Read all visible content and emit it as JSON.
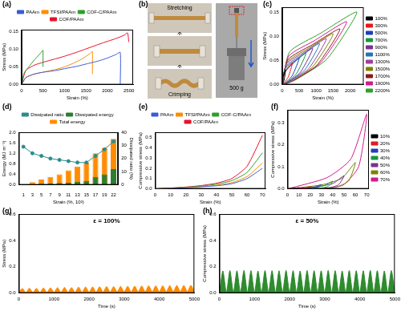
{
  "chart_data": [
    {
      "panel_label": "(a)",
      "type": "line",
      "x_label": "Strain (%)",
      "y_label": "Stress (MPa)",
      "xlim": [
        0,
        2600
      ],
      "xticks": [
        0,
        500,
        1000,
        1500,
        2000,
        2500
      ],
      "ylim": [
        0,
        0.155
      ],
      "yticks": [
        {
          "value": 0,
          "label": "0.00"
        },
        {
          "value": 0.05,
          "label": "0.05"
        },
        {
          "value": 0.1,
          "label": "0.10"
        },
        {
          "value": 0.15,
          "label": "0.15"
        }
      ],
      "grid": false,
      "legend": "top",
      "series": [
        {
          "name": "PAAm",
          "color": "#3b5bdb",
          "x": [
            0,
            100,
            300,
            500,
            800,
            1000,
            1300,
            1500,
            1800,
            2000,
            2200,
            2300,
            2300
          ],
          "values": [
            0,
            0.02,
            0.03,
            0.035,
            0.04,
            0.045,
            0.052,
            0.058,
            0.067,
            0.075,
            0.085,
            0.091,
            0
          ]
        },
        {
          "name": "TFSI/PAAm",
          "color": "#ff8c00",
          "x": [
            0,
            100,
            300,
            500,
            800,
            1000,
            1200,
            1400,
            1600,
            1650,
            1650
          ],
          "values": [
            0,
            0.02,
            0.03,
            0.035,
            0.043,
            0.05,
            0.06,
            0.072,
            0.088,
            0.094,
            0.03
          ]
        },
        {
          "name": "COF-C/PAAm",
          "color": "#2ca02c",
          "x": [
            0,
            50,
            100,
            200,
            300,
            400,
            480,
            500,
            500
          ],
          "values": [
            0,
            0.03,
            0.04,
            0.055,
            0.07,
            0.083,
            0.094,
            0.097,
            0.05
          ]
        },
        {
          "name": "COF/PAAm",
          "color": "#e8112d",
          "x": [
            0,
            100,
            300,
            500,
            800,
            1000,
            1300,
            1600,
            1900,
            2200,
            2400,
            2470,
            2500
          ],
          "values": [
            0,
            0.04,
            0.055,
            0.063,
            0.073,
            0.08,
            0.092,
            0.105,
            0.118,
            0.13,
            0.14,
            0.146,
            0.12
          ]
        }
      ]
    },
    {
      "panel_label": "(c)",
      "type": "line",
      "x_label": "Strain (%)",
      "y_label": "Stress (MPa)",
      "xlim": [
        0,
        2400
      ],
      "xticks": [
        0,
        500,
        1000,
        1500,
        2000
      ],
      "ylim": [
        0,
        0.16
      ],
      "yticks": [
        {
          "value": 0,
          "label": "0.00"
        },
        {
          "value": 0.05,
          "label": "0.05"
        },
        {
          "value": 0.1,
          "label": "0.10"
        },
        {
          "value": 0.15,
          "label": "0.15"
        }
      ],
      "grid": false,
      "legend": "right",
      "series": [
        {
          "name": "100%",
          "color": "#000000",
          "x": [
            0,
            10,
            50,
            100,
            60,
            20,
            3
          ],
          "values": [
            0,
            0.014,
            0.021,
            0.03,
            0.011,
            0.002,
            0
          ]
        },
        {
          "name": "300%",
          "color": "#e41a1c",
          "x": [
            0,
            30,
            150,
            300,
            180,
            60,
            9
          ],
          "values": [
            0,
            0.02,
            0.032,
            0.045,
            0.016,
            0.004,
            0
          ]
        },
        {
          "name": "500%",
          "color": "#1f3fbf",
          "x": [
            0,
            50,
            250,
            500,
            300,
            100,
            15
          ],
          "values": [
            0,
            0.025,
            0.039,
            0.055,
            0.019,
            0.004,
            0
          ]
        },
        {
          "name": "700%",
          "color": "#1a9641",
          "x": [
            0,
            70,
            350,
            700,
            420,
            140,
            21
          ],
          "values": [
            0,
            0.029,
            0.046,
            0.065,
            0.023,
            0.005,
            0
          ]
        },
        {
          "name": "900%",
          "color": "#7b3294",
          "x": [
            0,
            90,
            450,
            900,
            540,
            180,
            27
          ],
          "values": [
            0,
            0.034,
            0.053,
            0.075,
            0.026,
            0.006,
            0
          ]
        },
        {
          "name": "1100%",
          "color": "#1f78b4",
          "x": [
            0,
            110,
            550,
            1100,
            660,
            220,
            33
          ],
          "values": [
            0,
            0.038,
            0.06,
            0.085,
            0.03,
            0.007,
            0
          ]
        },
        {
          "name": "1300%",
          "color": "#9e3f9e",
          "x": [
            0,
            130,
            650,
            1300,
            780,
            260,
            39
          ],
          "values": [
            0,
            0.043,
            0.067,
            0.095,
            0.033,
            0.008,
            0
          ]
        },
        {
          "name": "1500%",
          "color": "#808000",
          "x": [
            0,
            150,
            750,
            1500,
            900,
            300,
            45
          ],
          "values": [
            0,
            0.047,
            0.074,
            0.105,
            0.037,
            0.008,
            0
          ]
        },
        {
          "name": "1700%",
          "color": "#8b1a1a",
          "x": [
            0,
            170,
            850,
            1700,
            1020,
            340,
            51
          ],
          "values": [
            0,
            0.052,
            0.081,
            0.115,
            0.04,
            0.009,
            0
          ]
        },
        {
          "name": "1900%",
          "color": "#d01c8b",
          "x": [
            0,
            190,
            950,
            1900,
            1140,
            380,
            57
          ],
          "values": [
            0,
            0.059,
            0.091,
            0.13,
            0.046,
            0.01,
            0
          ]
        },
        {
          "name": "2200%",
          "color": "#33a02c",
          "x": [
            0,
            220,
            1100,
            2200,
            1320,
            440,
            66
          ],
          "values": [
            0,
            0.068,
            0.105,
            0.15,
            0.053,
            0.012,
            0
          ]
        }
      ]
    },
    {
      "panel_label": "(d)",
      "type": "bar",
      "x_label": "Strain (%, 10²)",
      "y_label": "Energy (MJ m⁻³)",
      "y2_label": "Dissipated ratio (%)",
      "categories": [
        1,
        3,
        5,
        7,
        9,
        11,
        13,
        15,
        17,
        19,
        22
      ],
      "ylim": [
        0,
        2
      ],
      "yticks": [
        {
          "value": 0,
          "label": "0.0"
        },
        0.4,
        0.8,
        1.2,
        1.6,
        {
          "value": 2,
          "label": "2.0"
        }
      ],
      "y2lim": [
        0,
        40
      ],
      "y2ticks": [
        0,
        10,
        20,
        30,
        40
      ],
      "grid": false,
      "legend": "top",
      "series": [
        {
          "name": "Dissipated energy",
          "color": "#2e7d32",
          "values": [
            0.006,
            0.025,
            0.04,
            0.055,
            0.07,
            0.09,
            0.12,
            0.15,
            0.3,
            0.4,
            0.6
          ]
        },
        {
          "name": "Total energy",
          "color": "#ff8c00",
          "values": [
            0.02,
            0.1,
            0.2,
            0.3,
            0.4,
            0.55,
            0.7,
            0.85,
            1.2,
            1.4,
            1.75
          ]
        },
        {
          "name": "Dissipated ratio",
          "color": "#2a8c8c",
          "type": "line",
          "axis": "y2",
          "marker": "circle",
          "values": [
            29,
            24,
            22,
            20,
            19,
            18,
            17,
            17,
            22,
            27,
            33
          ]
        }
      ]
    },
    {
      "panel_label": "(e)",
      "type": "line",
      "x_label": "Strain (%)",
      "y_label": "Compressive stress (MPa)",
      "xlim": [
        0,
        72
      ],
      "xticks": [
        0,
        10,
        20,
        30,
        40,
        50,
        60,
        70
      ],
      "ylim": [
        0,
        0.55
      ],
      "yticks": [
        {
          "value": 0,
          "label": "0.0"
        },
        0.1,
        0.2,
        0.3,
        0.4,
        0.5
      ],
      "grid": false,
      "legend": "top",
      "series": [
        {
          "name": "PAAm",
          "color": "#3b5bdb",
          "x": [
            0,
            10,
            20,
            30,
            40,
            50,
            60,
            70
          ],
          "values": [
            0,
            0.005,
            0.01,
            0.02,
            0.03,
            0.05,
            0.1,
            0.2
          ]
        },
        {
          "name": "TFSI/PAAm",
          "color": "#ff8c00",
          "x": [
            0,
            10,
            20,
            30,
            40,
            50,
            60,
            70
          ],
          "values": [
            0,
            0.006,
            0.012,
            0.022,
            0.035,
            0.06,
            0.12,
            0.25
          ]
        },
        {
          "name": "COF-C/PAAm",
          "color": "#2ca02c",
          "x": [
            0,
            10,
            20,
            30,
            40,
            50,
            60,
            70
          ],
          "values": [
            0,
            0.007,
            0.015,
            0.027,
            0.045,
            0.08,
            0.16,
            0.35
          ]
        },
        {
          "name": "COF/PAAm",
          "color": "#e8112d",
          "x": [
            0,
            10,
            20,
            30,
            40,
            50,
            60,
            70
          ],
          "values": [
            0,
            0.008,
            0.018,
            0.032,
            0.055,
            0.1,
            0.22,
            0.52
          ]
        }
      ]
    },
    {
      "panel_label": "(f)",
      "type": "line",
      "x_label": "Strain (%)",
      "y_label": "Compressive stress (MPa)",
      "xlim": [
        0,
        72
      ],
      "xticks": [
        0,
        10,
        20,
        30,
        40,
        50,
        60,
        70
      ],
      "ylim": [
        0,
        0.36
      ],
      "yticks": [
        {
          "value": 0,
          "label": "0.0"
        },
        0.1,
        0.2,
        0.3
      ],
      "grid": false,
      "legend": "right",
      "series": [
        {
          "name": "10%",
          "color": "#000000",
          "x": [
            0,
            5,
            8,
            10,
            9,
            7,
            4
          ],
          "values": [
            0,
            0.001,
            0.002,
            0.005,
            0.002,
            0,
            0
          ]
        },
        {
          "name": "20%",
          "color": "#e41a1c",
          "x": [
            0,
            10,
            16,
            20,
            18,
            14,
            8
          ],
          "values": [
            0,
            0.002,
            0.004,
            0.01,
            0.003,
            0.001,
            0
          ]
        },
        {
          "name": "30%",
          "color": "#1f3fbf",
          "x": [
            0,
            15,
            24,
            30,
            27,
            21,
            12
          ],
          "values": [
            0,
            0.003,
            0.008,
            0.02,
            0.006,
            0.001,
            0
          ]
        },
        {
          "name": "40%",
          "color": "#1a9641",
          "x": [
            0,
            20,
            32,
            40,
            36,
            28,
            16
          ],
          "values": [
            0,
            0.005,
            0.014,
            0.035,
            0.011,
            0.002,
            0
          ]
        },
        {
          "name": "50%",
          "color": "#7b3294",
          "x": [
            0,
            25,
            40,
            50,
            45,
            35,
            20
          ],
          "values": [
            0,
            0.009,
            0.024,
            0.06,
            0.018,
            0.003,
            0
          ]
        },
        {
          "name": "60%",
          "color": "#808000",
          "x": [
            0,
            30,
            48,
            60,
            54,
            42,
            24
          ],
          "values": [
            0,
            0.018,
            0.048,
            0.12,
            0.036,
            0.006,
            0
          ]
        },
        {
          "name": "70%",
          "color": "#d01c8b",
          "x": [
            0,
            35,
            56,
            70,
            63,
            49,
            28
          ],
          "values": [
            0,
            0.051,
            0.136,
            0.34,
            0.102,
            0.017,
            0
          ]
        }
      ]
    },
    {
      "panel_label": "(g)",
      "type": "line",
      "x_label": "Time (s)",
      "y_label": "Stress (MPa)",
      "annotation": "ε = 100%",
      "xlim": [
        0,
        5000
      ],
      "xticks": [
        0,
        1000,
        2000,
        3000,
        4000,
        5000
      ],
      "ylim": [
        0,
        0.6
      ],
      "yticks": [
        {
          "value": 0,
          "label": "0.0"
        },
        0.2,
        0.4,
        0.6
      ],
      "grid": false,
      "color": "#ff8c00",
      "x": [
        0,
        100,
        200,
        300,
        400,
        500,
        600,
        700,
        800,
        900,
        1000,
        1100,
        1200,
        1300,
        1400,
        1500,
        1600,
        1700,
        1800,
        1900,
        2000,
        2100,
        2200,
        2300,
        2400,
        2500,
        2600,
        2700,
        2800,
        2900,
        3000,
        3100,
        3200,
        3300,
        3400,
        3500,
        3600,
        3700,
        3800,
        3900,
        4000,
        4100,
        4200,
        4300,
        4400,
        4500,
        4600,
        4700,
        4800,
        4900,
        5000
      ],
      "values": [
        0.003,
        0.035,
        0.003,
        0.037,
        0.004,
        0.036,
        0.004,
        0.039,
        0.004,
        0.04,
        0.005,
        0.041,
        0.005,
        0.043,
        0.005,
        0.042,
        0.006,
        0.045,
        0.006,
        0.046,
        0.006,
        0.047,
        0.007,
        0.048,
        0.007,
        0.05,
        0.007,
        0.049,
        0.008,
        0.051,
        0.008,
        0.052,
        0.008,
        0.053,
        0.009,
        0.054,
        0.009,
        0.055,
        0.009,
        0.055,
        0.01,
        0.056,
        0.01,
        0.057,
        0.01,
        0.058,
        0.011,
        0.058,
        0.011,
        0.059,
        0.011
      ]
    },
    {
      "panel_label": "(h)",
      "type": "line",
      "x_label": "Time (s)",
      "y_label": "Compressive stress (MPa)",
      "annotation": "ε = 50%",
      "xlim": [
        0,
        5000
      ],
      "xticks": [
        0,
        1000,
        2000,
        3000,
        4000,
        5000
      ],
      "ylim": [
        0,
        0.6
      ],
      "yticks": [
        {
          "value": 0,
          "label": "0.0"
        },
        0.2,
        0.4,
        0.6
      ],
      "grid": false,
      "color": "#2e8b2e",
      "x": [
        0,
        100,
        200,
        300,
        400,
        500,
        600,
        700,
        800,
        900,
        1000,
        1100,
        1200,
        1300,
        1400,
        1500,
        1600,
        1700,
        1800,
        1900,
        2000,
        2100,
        2200,
        2300,
        2400,
        2500,
        2600,
        2700,
        2800,
        2900,
        3000,
        3100,
        3200,
        3300,
        3400,
        3500,
        3600,
        3700,
        3800,
        3900,
        4000,
        4100,
        4200,
        4300,
        4400,
        4500,
        4600,
        4700,
        4800,
        4900,
        5000
      ],
      "values": [
        0.002,
        0.168,
        0.002,
        0.171,
        0.002,
        0.169,
        0.002,
        0.172,
        0.002,
        0.17,
        0.002,
        0.168,
        0.002,
        0.171,
        0.002,
        0.17,
        0.002,
        0.169,
        0.002,
        0.172,
        0.002,
        0.17,
        0.002,
        0.168,
        0.002,
        0.171,
        0.002,
        0.17,
        0.002,
        0.169,
        0.002,
        0.172,
        0.002,
        0.17,
        0.002,
        0.168,
        0.002,
        0.171,
        0.002,
        0.17,
        0.002,
        0.169,
        0.002,
        0.172,
        0.002,
        0.17,
        0.002,
        0.168,
        0.002,
        0.171,
        0.002
      ]
    }
  ],
  "photo_panel": {
    "panel_label": "(b)",
    "top_label": "Stretching",
    "bottom_label": "Crimping",
    "weight_label": "500 g"
  }
}
